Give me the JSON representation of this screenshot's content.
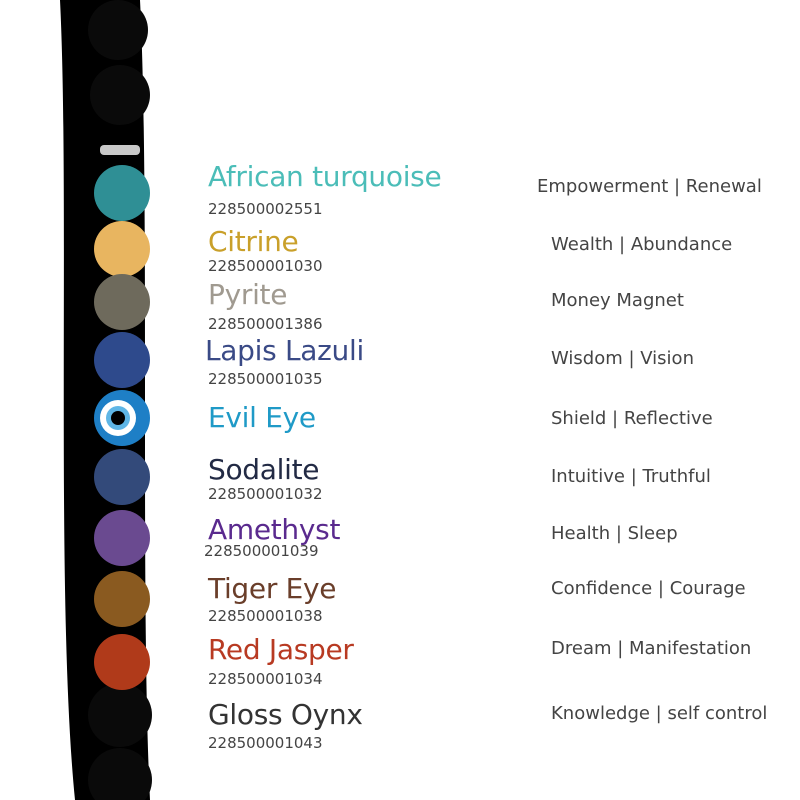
{
  "stones": [
    {
      "name": "African turquoise",
      "code": "228500002551",
      "benefit": "Empowerment | Renewal",
      "color": "#4bbdb8",
      "bead": "#2f8f95"
    },
    {
      "name": "Citrine",
      "code": "228500001030",
      "benefit": "Wealth | Abundance",
      "color": "#c9a02a",
      "bead": "#e8b560"
    },
    {
      "name": "Pyrite",
      "code": "228500001386",
      "benefit": "Money Magnet",
      "color": "#a09a90",
      "bead": "#6e6a5c"
    },
    {
      "name": "Lapis Lazuli",
      "code": "228500001035",
      "benefit": "Wisdom | Vision",
      "color": "#3a4a86",
      "bead": "#2e4a8c"
    },
    {
      "name": "Evil Eye",
      "code": "",
      "benefit": "Shield | Reflective",
      "color": "#1f9ac7",
      "bead": "#1e7fc6"
    },
    {
      "name": "Sodalite",
      "code": "228500001032",
      "benefit": "Intuitive | Truthful",
      "color": "#222a44",
      "bead": "#334a7a"
    },
    {
      "name": "Amethyst",
      "code": "228500001039",
      "benefit": "Health | Sleep",
      "color": "#5a2a8e",
      "bead": "#6a4a90"
    },
    {
      "name": "Tiger Eye",
      "code": "228500001038",
      "benefit": "Confidence | Courage",
      "color": "#6a3e2a",
      "bead": "#8a5a20"
    },
    {
      "name": "Red Jasper",
      "code": "228500001034",
      "benefit": "Dream | Manifestation",
      "color": "#b83a22",
      "bead": "#b03a1a"
    },
    {
      "name": "Gloss Oynx",
      "code": "228500001043",
      "benefit": "Knowledge | self control",
      "color": "#333333",
      "bead": "#111111"
    }
  ]
}
